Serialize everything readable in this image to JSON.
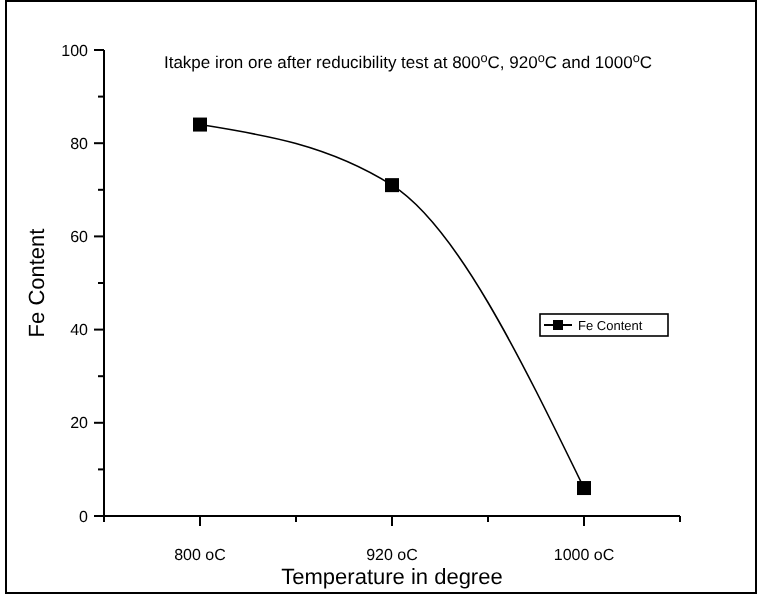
{
  "chart_data": {
    "type": "line",
    "title": "Itakpe iron ore after reducibility test at 800$^{o}$C, 920$^{o}$C and 1000$^{o}$C",
    "xlabel": "Temperature in degree",
    "ylabel": "Fe Content",
    "categories": [
      "800 oC",
      "920 oC",
      "1000 oC"
    ],
    "series": [
      {
        "name": "Fe Content",
        "color": "#000000",
        "values": [
          84,
          71,
          6
        ]
      }
    ],
    "ylim": [
      0,
      100
    ],
    "yticks": [
      0,
      20,
      40,
      60,
      80,
      100
    ],
    "grid": false,
    "legend": "right",
    "marker": "square",
    "line_style": "solid"
  }
}
